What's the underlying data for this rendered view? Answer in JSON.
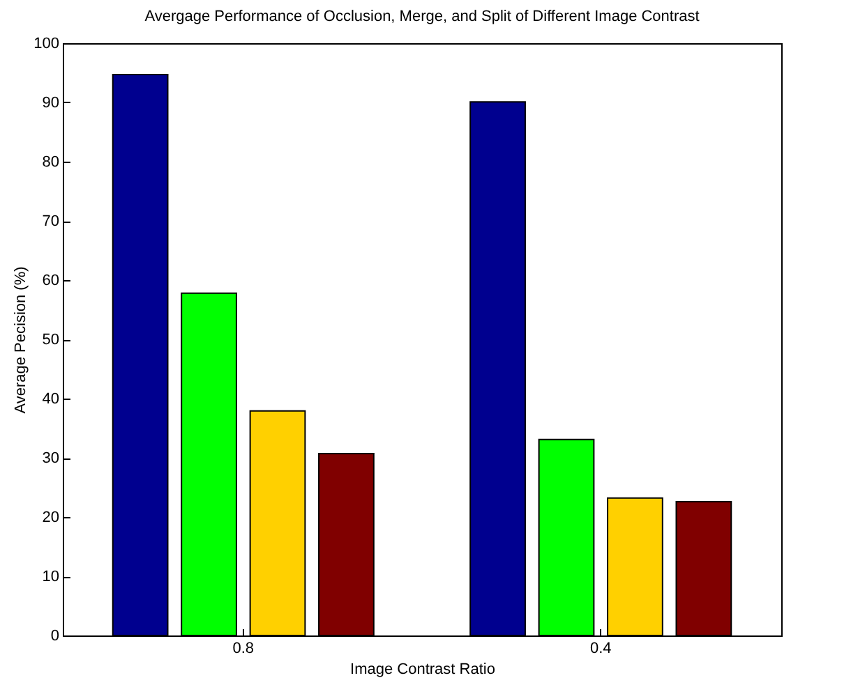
{
  "chart_data": {
    "type": "bar",
    "title": "Avergage Performance of Occlusion, Merge, and Split of Different Image Contrast",
    "xlabel": "Image Contrast Ratio",
    "ylabel": "Average Pecision (%)",
    "categories": [
      "0.8",
      "0.4"
    ],
    "series": [
      {
        "color": "#00008f",
        "values": [
          94.7,
          90.1
        ]
      },
      {
        "color": "#00ff00",
        "values": [
          57.8,
          33.1
        ]
      },
      {
        "color": "#ffd000",
        "values": [
          37.9,
          23.2
        ]
      },
      {
        "color": "#800000",
        "values": [
          30.7,
          22.6
        ]
      }
    ],
    "ylim": [
      0,
      100
    ],
    "yticks": [
      0,
      10,
      20,
      30,
      40,
      50,
      60,
      70,
      80,
      90,
      100
    ],
    "grid": false,
    "legend": false
  }
}
